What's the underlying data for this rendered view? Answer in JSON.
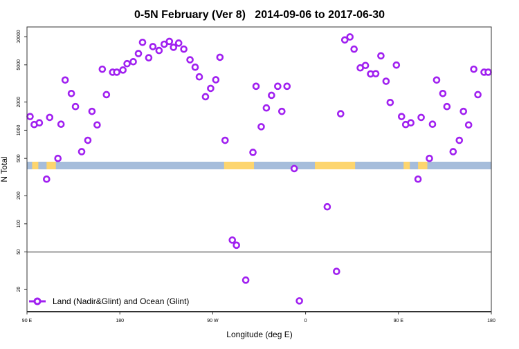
{
  "chart_data": {
    "type": "scatter",
    "title": "0-5N February (Ver 8)   2014-09-06 to 2017-06-30",
    "xlabel": "Longitude (deg E)",
    "ylabel": "N Total",
    "y_scale": "log",
    "ylim": [
      11.5,
      12700
    ],
    "xlim_deg_east": [
      90,
      540
    ],
    "x_ticks": [
      {
        "value": 90,
        "label": "90 E"
      },
      {
        "value": 180,
        "label": "180"
      },
      {
        "value": 270,
        "label": "90 W"
      },
      {
        "value": 360,
        "label": "0"
      },
      {
        "value": 450,
        "label": "90 E"
      },
      {
        "value": 540,
        "label": "180"
      }
    ],
    "y_ticks": [
      {
        "value": 20,
        "label": "20"
      },
      {
        "value": 50,
        "label": "50"
      },
      {
        "value": 100,
        "label": "100"
      },
      {
        "value": 200,
        "label": "200"
      },
      {
        "value": 500,
        "label": "500"
      },
      {
        "value": 1000,
        "label": "1000"
      },
      {
        "value": 2000,
        "label": "2000"
      },
      {
        "value": 5000,
        "label": "5000"
      },
      {
        "value": 10000,
        "label": "10000"
      }
    ],
    "reference_line": 50,
    "grid": false,
    "legend_position": "bottom-left",
    "land_ocean_strip": {
      "ocean_color": "#a6bddb",
      "land_color": "#fdd56e",
      "land_lon_ranges": [
        [
          95,
          101
        ],
        [
          109,
          118
        ],
        [
          -79,
          -50
        ],
        [
          9,
          48
        ]
      ]
    },
    "series": [
      {
        "name": "Land (Nadir&Glint) and Ocean (Glint)",
        "color": "#a020f0",
        "marker": "open-circle",
        "lon": [
          93,
          97,
          102,
          109,
          112,
          120,
          123,
          127,
          133,
          137,
          143,
          149,
          153,
          158,
          163,
          167,
          173,
          177,
          -177,
          -173,
          -167,
          -162,
          -158,
          -152,
          -148,
          -142,
          -137,
          -132,
          -128,
          -123,
          -118,
          -112,
          -107,
          -103,
          -97,
          -92,
          -87,
          -83,
          -78,
          -71,
          -67,
          -58,
          -51,
          -48,
          -43,
          -38,
          -33,
          -27,
          -23,
          -18,
          -11,
          -6,
          21,
          30,
          34,
          38,
          43,
          47,
          53,
          58,
          63,
          68,
          73,
          78,
          82,
          88
        ],
        "values": [
          1400,
          1150,
          1200,
          300,
          1370,
          500,
          1160,
          3440,
          2470,
          1790,
          590,
          780,
          1590,
          1140,
          4490,
          2400,
          4170,
          4170,
          4400,
          5140,
          5400,
          6600,
          8700,
          5950,
          7830,
          7110,
          8300,
          8900,
          7700,
          8540,
          7360,
          5660,
          4720,
          3720,
          2280,
          2800,
          3460,
          6020,
          780,
          67,
          59,
          25,
          580,
          2950,
          1090,
          1730,
          2360,
          2950,
          1590,
          2950,
          389,
          15,
          152,
          31,
          1500,
          9230,
          9930,
          7360,
          4640,
          4920,
          4000,
          4020,
          6240,
          3340,
          1980,
          4970
        ]
      }
    ]
  }
}
